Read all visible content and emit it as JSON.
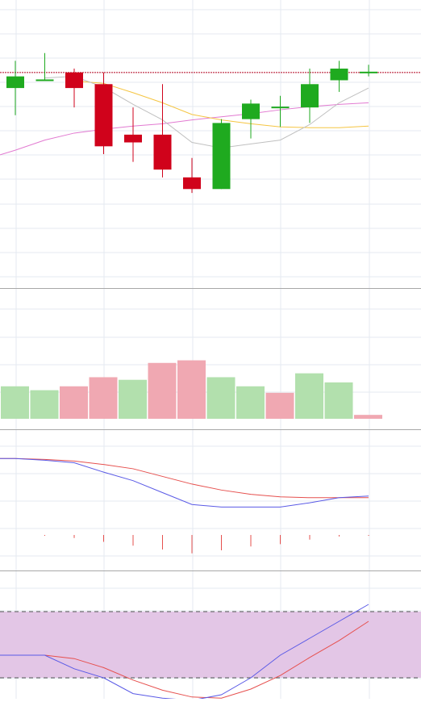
{
  "colors": {
    "up": "#1faa1f",
    "down": "#d0021b",
    "vol_up": "#b2e0ad",
    "vol_down": "#f0a8b2",
    "ma_fast": "#c0c0c0",
    "ma_mid": "#f5c542",
    "ma_slow": "#e27ad1",
    "macd": "#5a5ae6",
    "signal": "#e6504e",
    "stoch_k": "#5a5ae6",
    "stoch_d": "#e6504e",
    "stoch_band": "#e3c6e6",
    "price_line": "#b0001e",
    "grid": "#e4eaf0",
    "divider": "#a8a8a8"
  },
  "chart_data": [
    {
      "type": "candlestick",
      "panel": "price",
      "ylim": [
        0,
        35
      ],
      "price_line": 26.5,
      "candles": [
        {
          "o": 24.5,
          "h": 28.0,
          "l": 21.0,
          "c": 26.0
        },
        {
          "o": 25.5,
          "h": 29.0,
          "l": 25.5,
          "c": 25.5
        },
        {
          "o": 26.5,
          "h": 27.0,
          "l": 22.0,
          "c": 24.5
        },
        {
          "o": 25.0,
          "h": 26.5,
          "l": 16.0,
          "c": 17.0
        },
        {
          "o": 18.5,
          "h": 22.0,
          "l": 15.0,
          "c": 17.5
        },
        {
          "o": 18.5,
          "h": 25.0,
          "l": 13.0,
          "c": 14.0
        },
        {
          "o": 13.0,
          "h": 15.5,
          "l": 11.0,
          "c": 11.5
        },
        {
          "o": 11.5,
          "h": 20.5,
          "l": 11.5,
          "c": 20.0
        },
        {
          "o": 20.5,
          "h": 23.0,
          "l": 18.0,
          "c": 22.5
        },
        {
          "o": 22.0,
          "h": 23.5,
          "l": 19.5,
          "c": 22.0
        },
        {
          "o": 22.0,
          "h": 27.0,
          "l": 20.0,
          "c": 25.0
        },
        {
          "o": 25.5,
          "h": 28.0,
          "l": 24.0,
          "c": 27.0
        },
        {
          "o": 26.5,
          "h": 27.5,
          "l": 26.0,
          "c": 26.5
        }
      ],
      "ma_fast": [
        null,
        25.8,
        26.0,
        24.6,
        22.4,
        20.4,
        17.5,
        16.8,
        17.3,
        17.8,
        19.8,
        22.6,
        24.5
      ],
      "ma_mid": [
        null,
        null,
        25.4,
        25.1,
        23.9,
        22.6,
        21.1,
        20.4,
        19.9,
        19.5,
        19.4,
        19.4,
        19.6
      ],
      "ma_slow": [
        16.5,
        17.8,
        18.7,
        19.2,
        19.6,
        19.9,
        20.4,
        20.8,
        21.2,
        21.7,
        22.1,
        22.4,
        22.6
      ]
    },
    {
      "type": "bar",
      "panel": "volume",
      "ylim": [
        0,
        100
      ],
      "values": [
        25,
        22,
        25,
        32,
        30,
        43,
        45,
        32,
        25,
        20,
        35,
        28,
        3
      ],
      "direction": [
        "up",
        "up",
        "down",
        "down",
        "up",
        "down",
        "down",
        "up",
        "up",
        "down",
        "up",
        "up",
        "down"
      ]
    },
    {
      "type": "line",
      "panel": "macd",
      "ylim": [
        -1.2,
        0.25
      ],
      "macd": [
        0.02,
        0.0,
        -0.03,
        -0.14,
        -0.24,
        -0.38,
        -0.52,
        -0.55,
        -0.55,
        -0.55,
        -0.5,
        -0.44,
        -0.42
      ],
      "signal": [
        0.02,
        0.01,
        -0.01,
        -0.05,
        -0.1,
        -0.19,
        -0.28,
        -0.35,
        -0.4,
        -0.43,
        -0.44,
        -0.44,
        -0.44
      ],
      "histogram": [
        0.0,
        -0.01,
        -0.04,
        -0.09,
        -0.14,
        -0.19,
        -0.24,
        -0.2,
        -0.15,
        -0.12,
        -0.06,
        -0.02,
        -0.01
      ]
    },
    {
      "type": "line",
      "panel": "stochastic",
      "ylim": [
        0,
        100
      ],
      "band": [
        20,
        80
      ],
      "k": [
        40,
        40,
        28,
        20,
        6,
        2,
        0,
        5,
        20,
        40,
        55,
        70,
        85
      ],
      "d": [
        40,
        40,
        37,
        29,
        18,
        9,
        3,
        2,
        10,
        22,
        38,
        53,
        70
      ]
    }
  ]
}
